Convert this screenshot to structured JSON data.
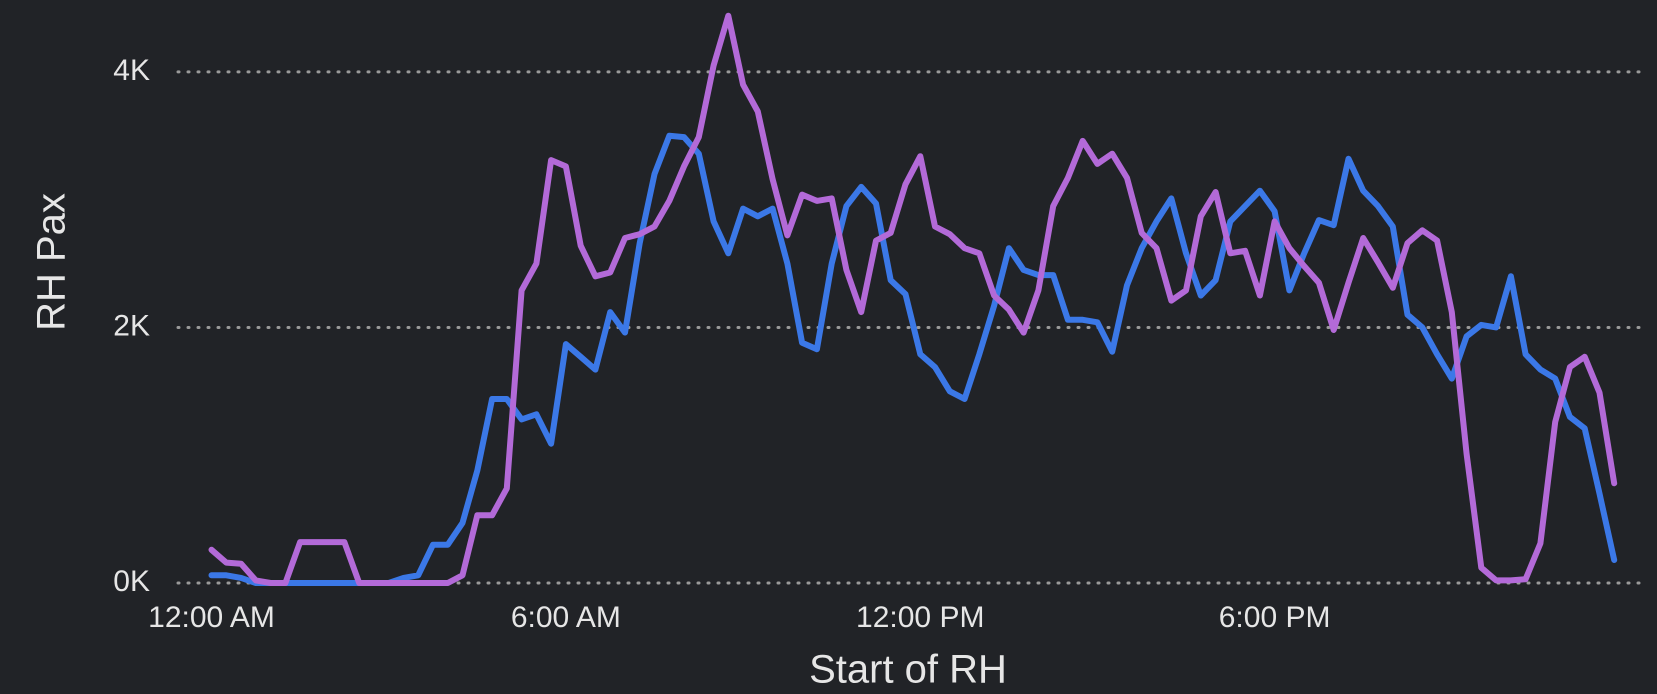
{
  "chart_data": {
    "type": "line",
    "xlabel": "Start of RH",
    "ylabel": "RH Pax",
    "x": [
      0,
      0.25,
      0.5,
      0.75,
      1,
      1.25,
      1.5,
      1.75,
      2,
      2.25,
      2.5,
      2.75,
      3,
      3.25,
      3.5,
      3.75,
      4,
      4.25,
      4.5,
      4.75,
      5,
      5.25,
      5.5,
      5.75,
      6,
      6.25,
      6.5,
      6.75,
      7,
      7.25,
      7.5,
      7.75,
      8,
      8.25,
      8.5,
      8.75,
      9,
      9.25,
      9.5,
      9.75,
      10,
      10.25,
      10.5,
      10.75,
      11,
      11.25,
      11.5,
      11.75,
      12,
      12.25,
      12.5,
      12.75,
      13,
      13.25,
      13.5,
      13.75,
      14,
      14.25,
      14.5,
      14.75,
      15,
      15.25,
      15.5,
      15.75,
      16,
      16.25,
      16.5,
      16.75,
      17,
      17.25,
      17.5,
      17.75,
      18,
      18.25,
      18.5,
      18.75,
      19,
      19.25,
      19.5,
      19.75,
      20,
      20.25,
      20.5,
      20.75,
      21,
      21.25,
      21.5,
      21.75,
      22,
      22.25,
      22.5,
      22.75,
      23,
      23.25,
      23.5,
      23.75
    ],
    "series": [
      {
        "color": "#3b78e7",
        "values": [
          60,
          60,
          40,
          0,
          0,
          0,
          0,
          0,
          0,
          0,
          0,
          0,
          0,
          40,
          60,
          300,
          300,
          470,
          880,
          1440,
          1440,
          1280,
          1320,
          1090,
          1870,
          1770,
          1670,
          2120,
          1960,
          2660,
          3200,
          3500,
          3490,
          3360,
          2830,
          2580,
          2930,
          2870,
          2930,
          2500,
          1880,
          1830,
          2500,
          2950,
          3100,
          2970,
          2370,
          2260,
          1790,
          1690,
          1500,
          1440,
          1790,
          2170,
          2620,
          2450,
          2410,
          2410,
          2060,
          2060,
          2040,
          1810,
          2330,
          2620,
          2830,
          3010,
          2580,
          2250,
          2370,
          2830,
          2950,
          3070,
          2910,
          2290,
          2580,
          2840,
          2800,
          3320,
          3070,
          2950,
          2790,
          2100,
          2000,
          1790,
          1600,
          1930,
          2020,
          2000,
          2400,
          1790,
          1670,
          1600,
          1300,
          1210,
          700,
          180
        ]
      },
      {
        "color": "#b36ad8",
        "values": [
          260,
          160,
          150,
          20,
          0,
          0,
          320,
          320,
          320,
          320,
          0,
          0,
          0,
          0,
          0,
          0,
          0,
          60,
          530,
          530,
          740,
          2290,
          2500,
          3310,
          3260,
          2640,
          2400,
          2430,
          2700,
          2730,
          2790,
          2990,
          3260,
          3490,
          4050,
          4440,
          3900,
          3690,
          3160,
          2720,
          3040,
          2990,
          3010,
          2450,
          2120,
          2680,
          2740,
          3120,
          3340,
          2790,
          2730,
          2620,
          2580,
          2250,
          2140,
          1960,
          2290,
          2950,
          3170,
          3460,
          3280,
          3360,
          3170,
          2740,
          2620,
          2210,
          2290,
          2870,
          3060,
          2580,
          2600,
          2250,
          2830,
          2620,
          2480,
          2350,
          1980,
          2350,
          2700,
          2510,
          2310,
          2660,
          2760,
          2680,
          2120,
          1010,
          120,
          20,
          20,
          30,
          310,
          1260,
          1690,
          1770,
          1490,
          780
        ]
      }
    ],
    "xlim": [
      -0.5,
      24
    ],
    "xticks": [
      {
        "value": 0,
        "label": "12:00 AM"
      },
      {
        "value": 6,
        "label": "6:00 AM"
      },
      {
        "value": 12,
        "label": "12:00 PM"
      },
      {
        "value": 18,
        "label": "6:00 PM"
      }
    ],
    "ylim": [
      0,
      4500
    ],
    "yticks": [
      {
        "value": 0,
        "label": "0K"
      },
      {
        "value": 2000,
        "label": "2K"
      },
      {
        "value": 4000,
        "label": "4K"
      }
    ],
    "grid": true
  }
}
